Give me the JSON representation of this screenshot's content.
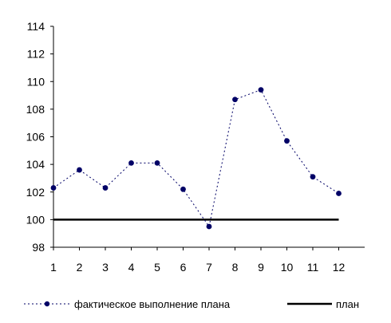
{
  "chart_data": {
    "type": "line",
    "title": "",
    "xlabel": "",
    "ylabel": "",
    "categories": [
      "1",
      "2",
      "3",
      "4",
      "5",
      "6",
      "7",
      "8",
      "9",
      "10",
      "11",
      "12"
    ],
    "ylim": [
      98,
      114
    ],
    "yticks": [
      "98",
      "100",
      "102",
      "104",
      "106",
      "108",
      "110",
      "112",
      "114"
    ],
    "grid": false,
    "legend_position": "bottom",
    "series": [
      {
        "name": "фактическое выполнение плана",
        "style": "dotted-with-markers",
        "color": "#000066",
        "values": [
          102.3,
          103.6,
          102.3,
          104.1,
          104.1,
          102.2,
          99.5,
          108.7,
          109.4,
          105.7,
          103.1,
          101.9
        ]
      },
      {
        "name": "план",
        "style": "solid",
        "color": "#000000",
        "values": [
          100,
          100,
          100,
          100,
          100,
          100,
          100,
          100,
          100,
          100,
          100,
          100
        ]
      }
    ]
  }
}
